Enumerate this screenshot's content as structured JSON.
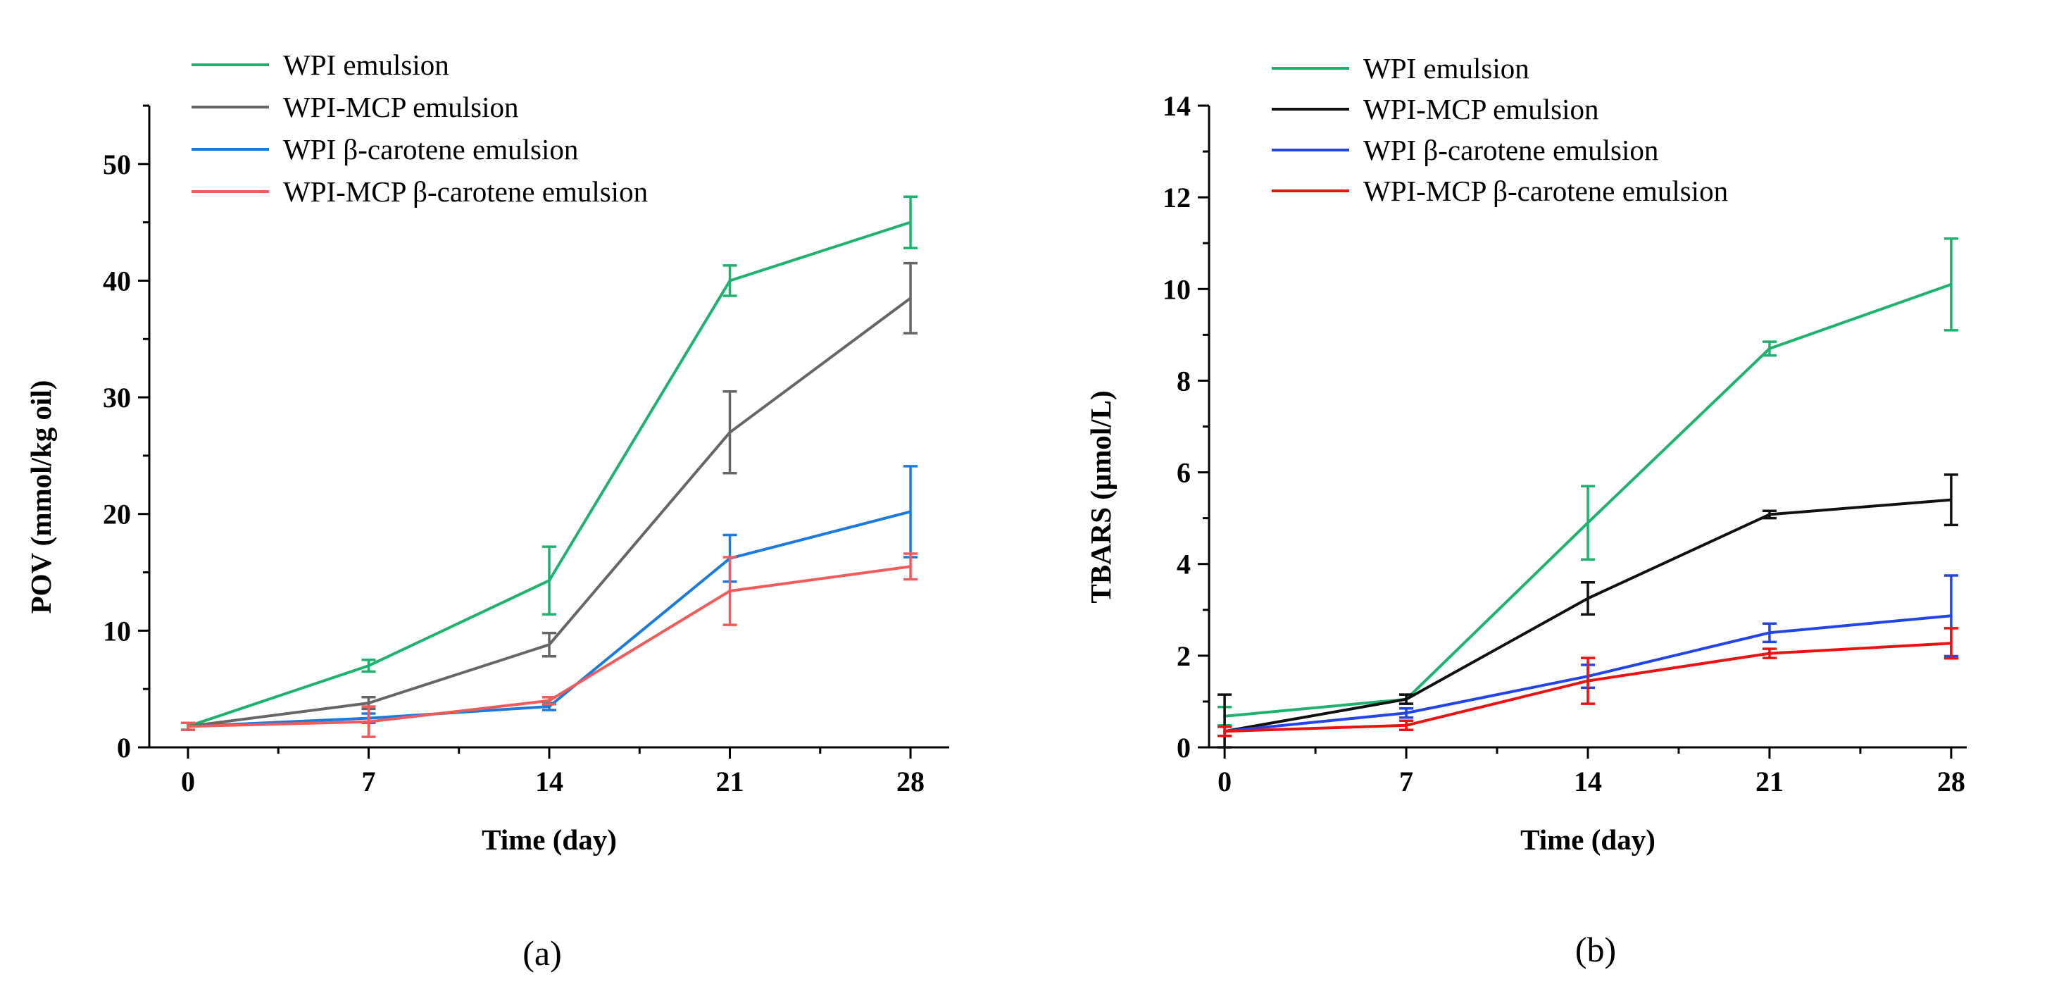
{
  "chart_data": [
    {
      "type": "line",
      "panel_label": "(a)",
      "title": "",
      "xlabel": "Time (day)",
      "ylabel": "POV (mmol/kg oil)",
      "x": [
        0,
        7,
        14,
        21,
        28
      ],
      "x_ticks": [
        0,
        7,
        14,
        21,
        28
      ],
      "y_ticks": [
        0,
        10,
        20,
        30,
        40,
        50
      ],
      "xlim": [
        -1.5,
        29.5
      ],
      "ylim": [
        0,
        55
      ],
      "legend_position": "top-left",
      "series": [
        {
          "name": "WPI emulsion",
          "color": "#1db36e",
          "values": [
            1.8,
            7.0,
            14.3,
            40.0,
            45.0
          ],
          "errors": [
            0.3,
            0.5,
            2.9,
            1.3,
            2.2
          ]
        },
        {
          "name": "WPI-MCP emulsion",
          "color": "#666666",
          "values": [
            1.8,
            3.8,
            8.8,
            27.0,
            38.5
          ],
          "errors": [
            0.3,
            0.5,
            1.0,
            3.5,
            3.0
          ]
        },
        {
          "name": "WPI β-carotene emulsion",
          "color": "#1a7ae0",
          "values": [
            1.8,
            2.5,
            3.5,
            16.2,
            20.2
          ],
          "errors": [
            0.3,
            0.4,
            0.3,
            2.0,
            3.9
          ]
        },
        {
          "name": "WPI-MCP β-carotene emulsion",
          "color": "#f55a5a",
          "values": [
            1.8,
            2.2,
            4.0,
            13.4,
            15.5
          ],
          "errors": [
            0.3,
            1.3,
            0.3,
            2.9,
            1.1
          ]
        }
      ]
    },
    {
      "type": "line",
      "panel_label": "(b)",
      "title": "",
      "xlabel": "Time (day)",
      "ylabel": "TBARS (μmol/L)",
      "x": [
        0,
        7,
        14,
        21,
        28
      ],
      "x_ticks": [
        0,
        7,
        14,
        21,
        28
      ],
      "y_ticks": [
        0,
        2,
        4,
        6,
        8,
        10,
        12,
        14
      ],
      "xlim": [
        -0.6,
        28.6
      ],
      "ylim": [
        0,
        14
      ],
      "legend_position": "top-left",
      "series": [
        {
          "name": "WPI emulsion",
          "color": "#1db36e",
          "values": [
            0.68,
            1.05,
            4.9,
            8.7,
            10.1
          ],
          "errors": [
            0.2,
            0.1,
            0.8,
            0.15,
            1.0
          ]
        },
        {
          "name": "WPI-MCP emulsion",
          "color": "#111111",
          "values": [
            0.35,
            1.05,
            3.25,
            5.08,
            5.4
          ],
          "errors": [
            0.8,
            0.1,
            0.35,
            0.08,
            0.55
          ]
        },
        {
          "name": "WPI β-carotene emulsion",
          "color": "#2244ee",
          "values": [
            0.35,
            0.75,
            1.55,
            2.5,
            2.87
          ],
          "errors": [
            0.1,
            0.1,
            0.25,
            0.2,
            0.88
          ]
        },
        {
          "name": "WPI-MCP β-carotene emulsion",
          "color": "#ee1111",
          "values": [
            0.35,
            0.48,
            1.45,
            2.05,
            2.27
          ],
          "errors": [
            0.1,
            0.1,
            0.5,
            0.1,
            0.33
          ]
        }
      ]
    }
  ]
}
